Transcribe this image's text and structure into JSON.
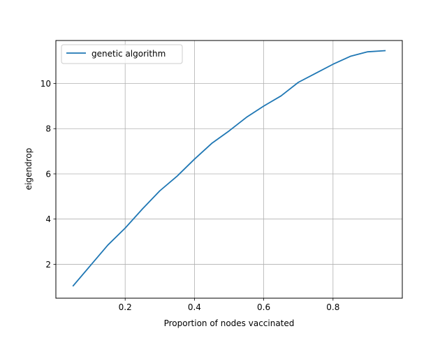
{
  "chart_data": {
    "type": "line",
    "xlabel": "Proportion of nodes vaccinated",
    "ylabel": "eigendrop",
    "xlim": [
      0.0,
      1.0
    ],
    "ylim": [
      0.5,
      11.9
    ],
    "xticks": [
      0.2,
      0.4,
      0.6,
      0.8
    ],
    "xtick_labels": [
      "0.2",
      "0.4",
      "0.6",
      "0.8"
    ],
    "yticks": [
      2,
      4,
      6,
      8,
      10
    ],
    "ytick_labels": [
      "2",
      "4",
      "6",
      "8",
      "10"
    ],
    "grid": true,
    "legend_position": "top-left",
    "series": [
      {
        "name": "genetic algorithm",
        "color": "#1f77b4",
        "x": [
          0.05,
          0.1,
          0.15,
          0.2,
          0.25,
          0.3,
          0.35,
          0.4,
          0.45,
          0.5,
          0.55,
          0.6,
          0.65,
          0.7,
          0.75,
          0.8,
          0.85,
          0.9,
          0.95
        ],
        "y": [
          1.05,
          1.95,
          2.85,
          3.6,
          4.45,
          5.25,
          5.9,
          6.65,
          7.35,
          7.9,
          8.5,
          9.0,
          9.45,
          10.05,
          10.45,
          10.85,
          11.2,
          11.4,
          11.45
        ]
      }
    ]
  }
}
